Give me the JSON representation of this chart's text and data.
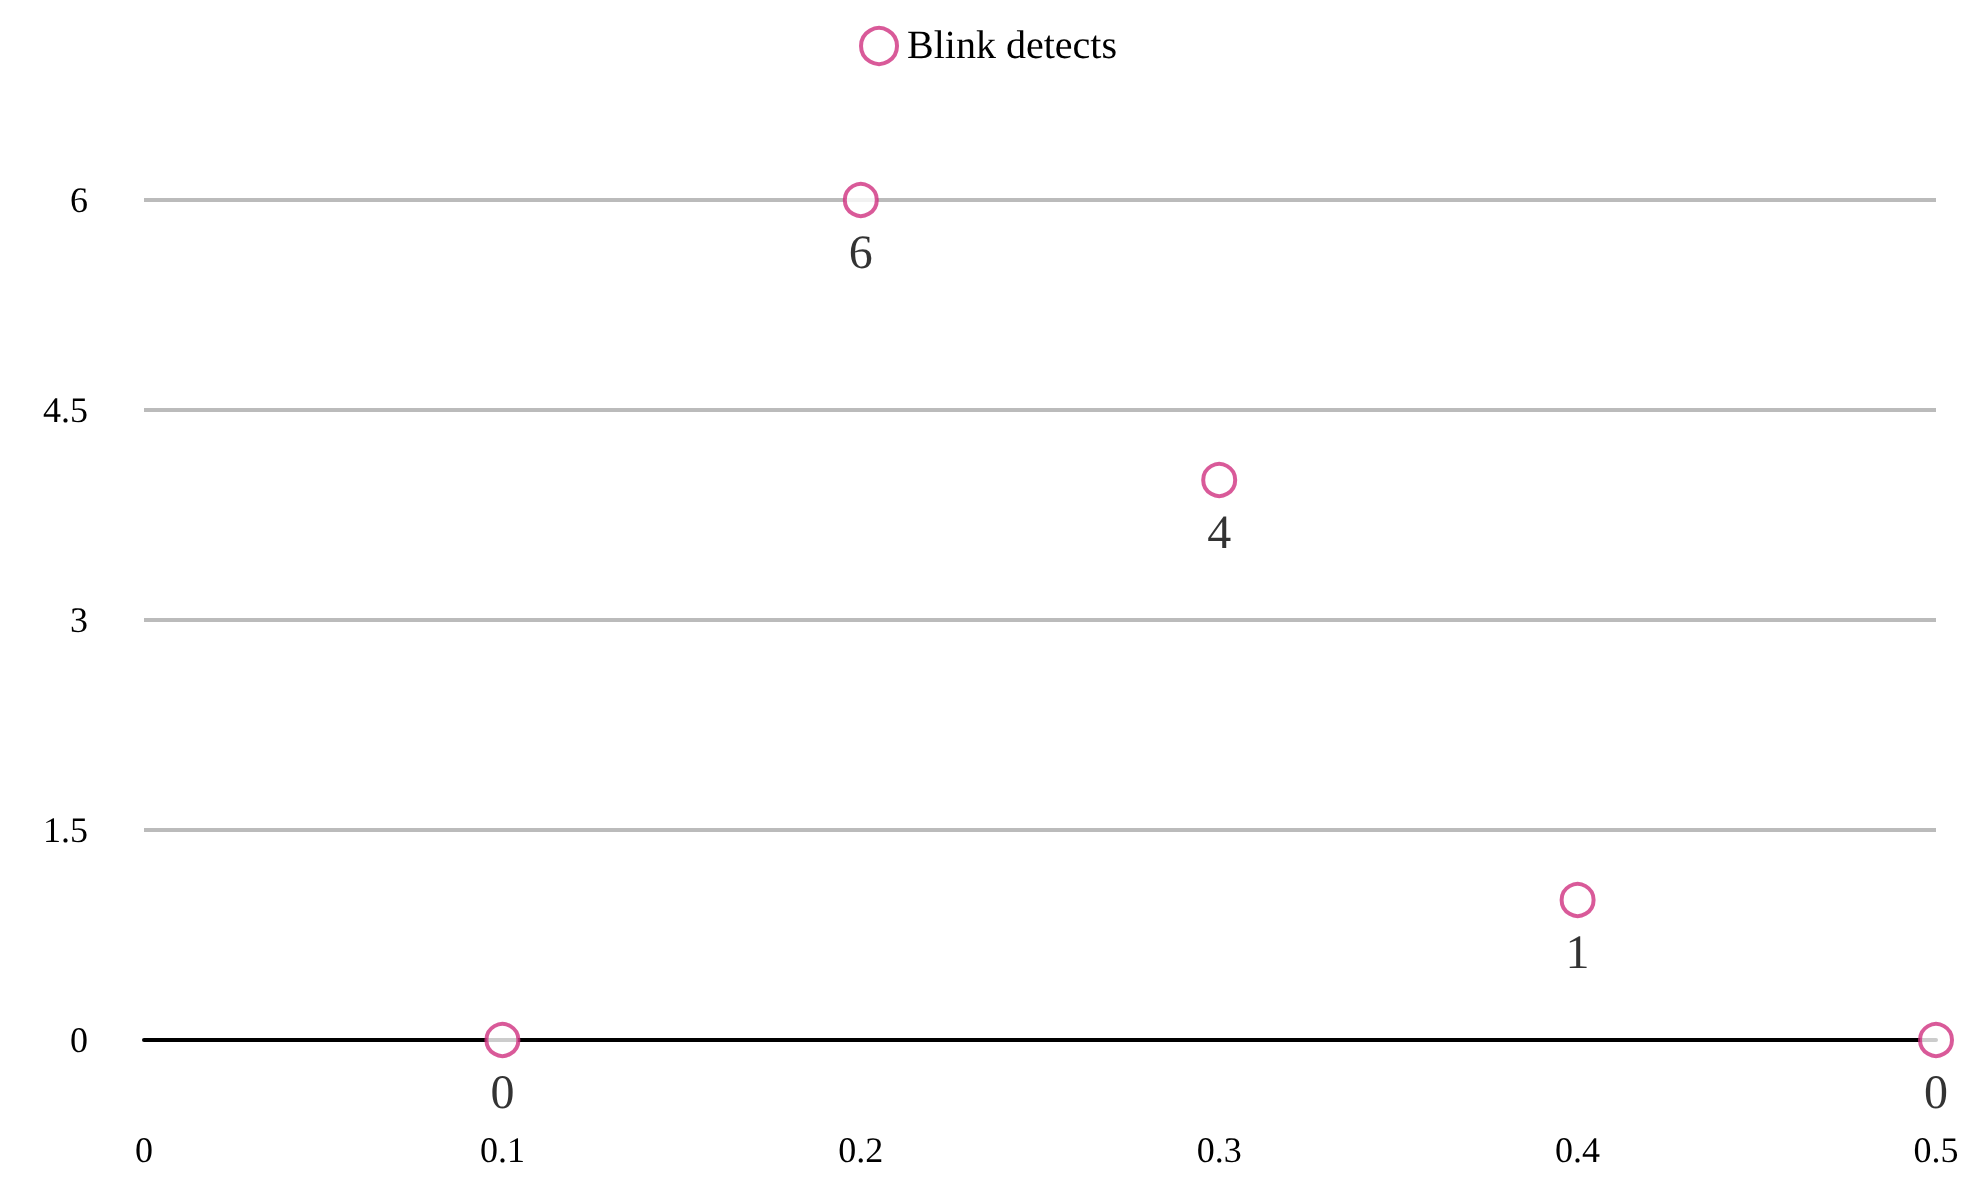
{
  "chart_data": {
    "type": "scatter",
    "x": [
      0.1,
      0.2,
      0.3,
      0.4,
      0.5
    ],
    "series": [
      {
        "name": "Blink detects",
        "color": "#d0317f",
        "values": [
          0,
          6,
          4,
          1,
          0
        ]
      }
    ],
    "xlim": [
      0,
      0.5
    ],
    "xticks": [
      0,
      0.1,
      0.2,
      0.3,
      0.4,
      0.5
    ],
    "ylim": [
      0,
      6
    ],
    "yticks": [
      0,
      1.5,
      3,
      4.5,
      6
    ],
    "grid": "y",
    "legend": "top",
    "marker": "circle",
    "data_labels": true
  }
}
